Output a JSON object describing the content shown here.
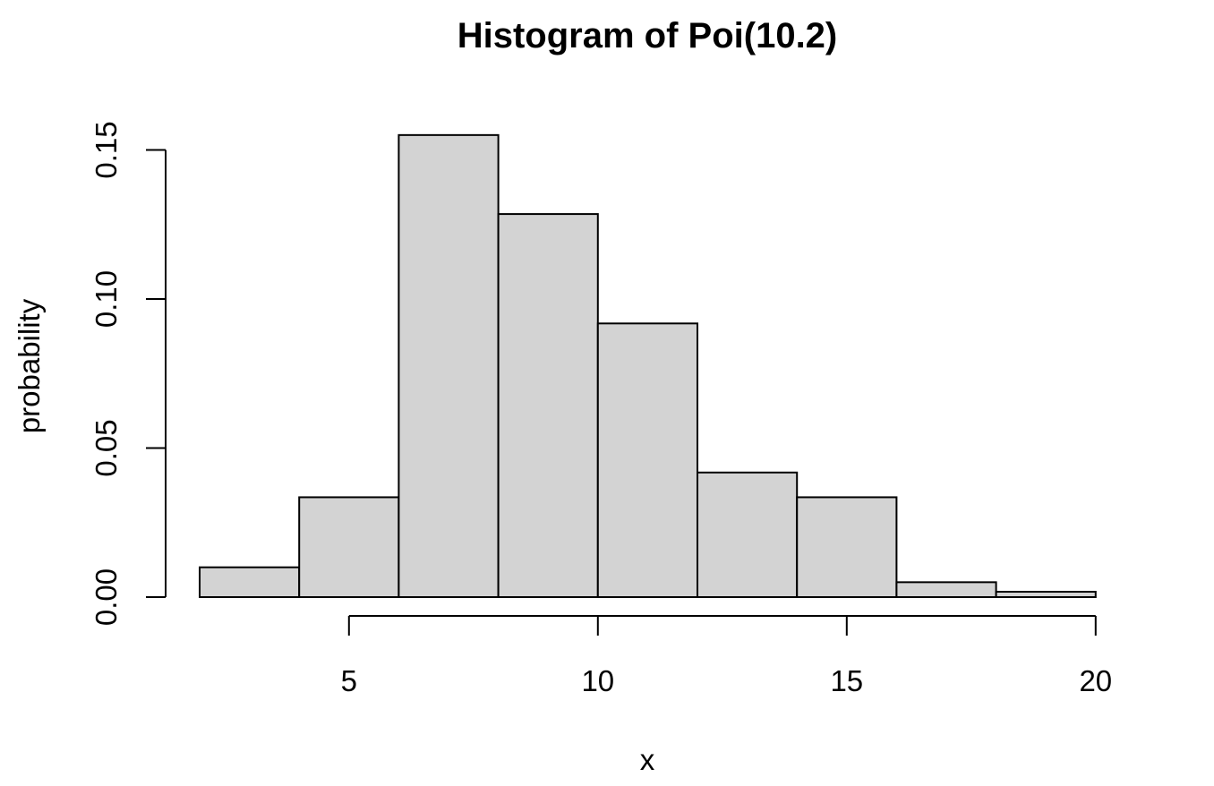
{
  "chart_data": {
    "type": "bar",
    "title": "Histogram of Poi(10.2)",
    "xlabel": "x",
    "ylabel": "probability",
    "bins": [
      {
        "from": 2,
        "to": 4,
        "value": 0.01
      },
      {
        "from": 4,
        "to": 6,
        "value": 0.0335
      },
      {
        "from": 6,
        "to": 8,
        "value": 0.155
      },
      {
        "from": 8,
        "to": 10,
        "value": 0.1285
      },
      {
        "from": 10,
        "to": 12,
        "value": 0.0918
      },
      {
        "from": 12,
        "to": 14,
        "value": 0.0418
      },
      {
        "from": 14,
        "to": 16,
        "value": 0.0335
      },
      {
        "from": 16,
        "to": 18,
        "value": 0.005
      },
      {
        "from": 18,
        "to": 20,
        "value": 0.0018
      }
    ],
    "x_ticks": [
      5,
      10,
      15,
      20
    ],
    "x_tick_labels": [
      "5",
      "10",
      "15",
      "20"
    ],
    "y_ticks": [
      0,
      0.05,
      0.1,
      0.15
    ],
    "y_tick_labels": [
      "0.00",
      "0.05",
      "0.10",
      "0.15"
    ],
    "x_axis_range": [
      5,
      20
    ],
    "y_axis_range": [
      0,
      0.15
    ],
    "grid": false,
    "colors": {
      "bar_fill": "#d3d3d3",
      "bar_stroke": "#000000"
    }
  }
}
